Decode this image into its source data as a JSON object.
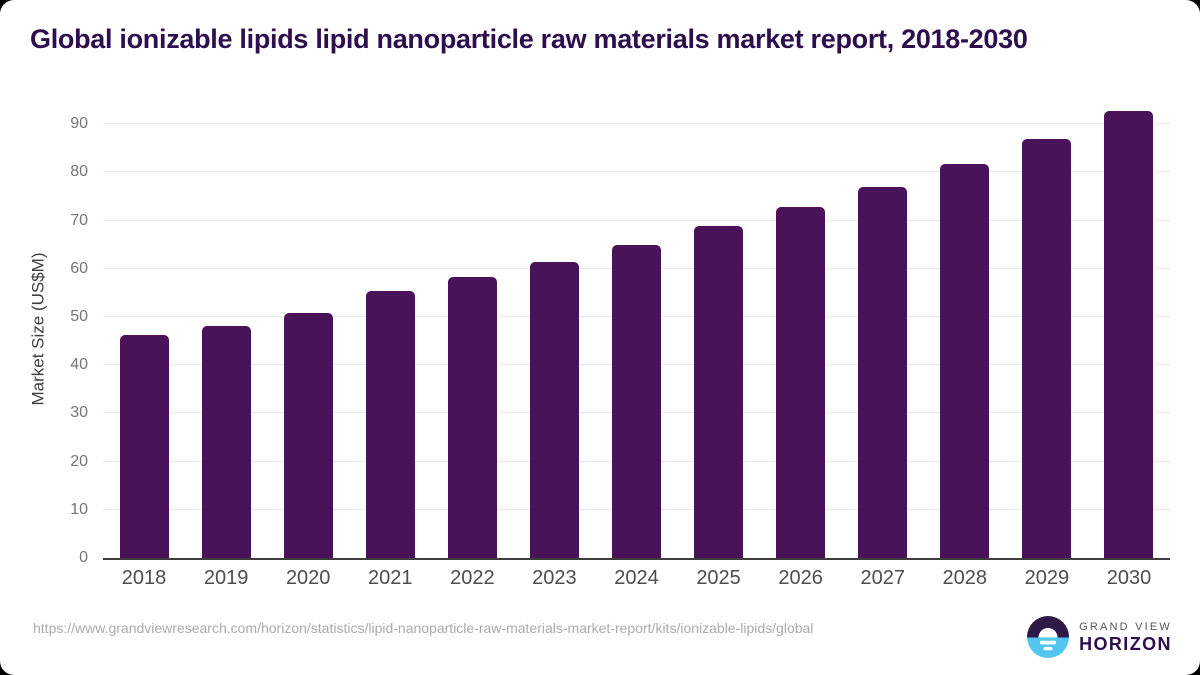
{
  "chart_data": {
    "type": "bar",
    "title": "Global ionizable lipids lipid nanoparticle raw materials market report, 2018-2030",
    "categories": [
      "2018",
      "2019",
      "2020",
      "2021",
      "2022",
      "2023",
      "2024",
      "2025",
      "2026",
      "2027",
      "2028",
      "2029",
      "2030"
    ],
    "values": [
      46.2,
      48.1,
      50.8,
      55.4,
      58.3,
      61.5,
      65.0,
      68.9,
      72.8,
      77.0,
      81.8,
      86.9,
      92.7
    ],
    "xlabel": "",
    "ylabel": "Market Size (US$M)",
    "ylim": [
      0,
      95
    ],
    "yticks": [
      0,
      10,
      20,
      30,
      40,
      50,
      60,
      70,
      80,
      90
    ],
    "grid": true,
    "legend": "none",
    "bar_color": "#4a1259"
  },
  "footer": {
    "source_url": "https://www.grandviewresearch.com/horizon/statistics/lipid-nanoparticle-raw-materials-market-report/kits/ionizable-lipids/global",
    "logo": {
      "brand_line1": "GRAND VIEW",
      "brand_line2": "HORIZON"
    }
  },
  "colors": {
    "bar": "#4a1259",
    "title": "#2d0f4e",
    "axis_line": "#3d3d3d",
    "gridline": "#e8e8e8",
    "tick_label": "#757575",
    "x_label": "#4d4d4d",
    "url_text": "#ababab",
    "logo_blue": "#52c5f0",
    "logo_purple": "#2e1947"
  }
}
